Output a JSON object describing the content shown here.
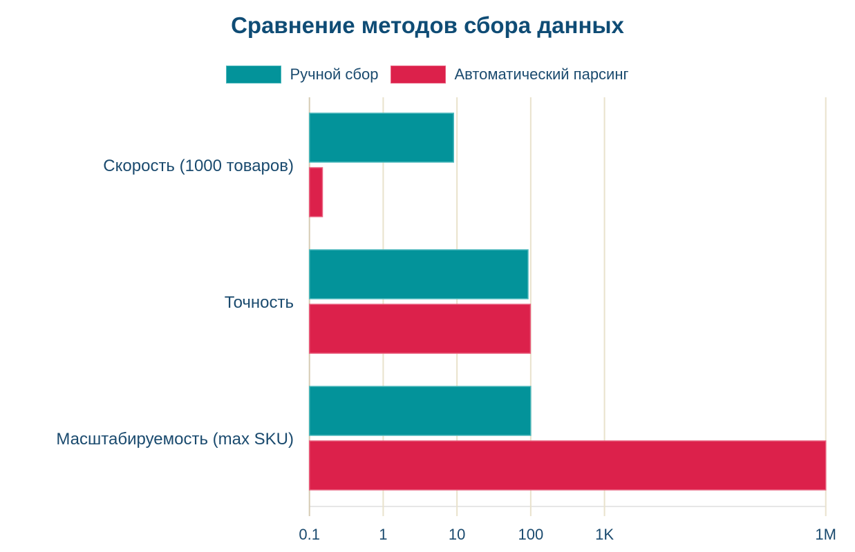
{
  "chart_data": {
    "type": "bar",
    "orientation": "horizontal",
    "title": "Сравнение методов сбора данных",
    "xlabel": "",
    "ylabel": "",
    "xscale": "log",
    "xlim": [
      0.1,
      1000000
    ],
    "grid": true,
    "legend_position": "top-center",
    "categories": [
      "Скорость (1000 товаров)",
      "Точность",
      "Масштабируемость (max SKU)"
    ],
    "series": [
      {
        "name": "Ручной сбор",
        "color": "#03939a",
        "values": [
          9,
          92,
          100
        ]
      },
      {
        "name": "Автоматический парсинг",
        "color": "#dc214b",
        "values": [
          0.15,
          99,
          1000000
        ]
      }
    ],
    "ticks": [
      {
        "value": 0.1,
        "label": "0.1"
      },
      {
        "value": 1,
        "label": "1"
      },
      {
        "value": 10,
        "label": "10"
      },
      {
        "value": 100,
        "label": "100"
      },
      {
        "value": 1000,
        "label": "1K"
      },
      {
        "value": 1000000,
        "label": "1M"
      }
    ]
  }
}
